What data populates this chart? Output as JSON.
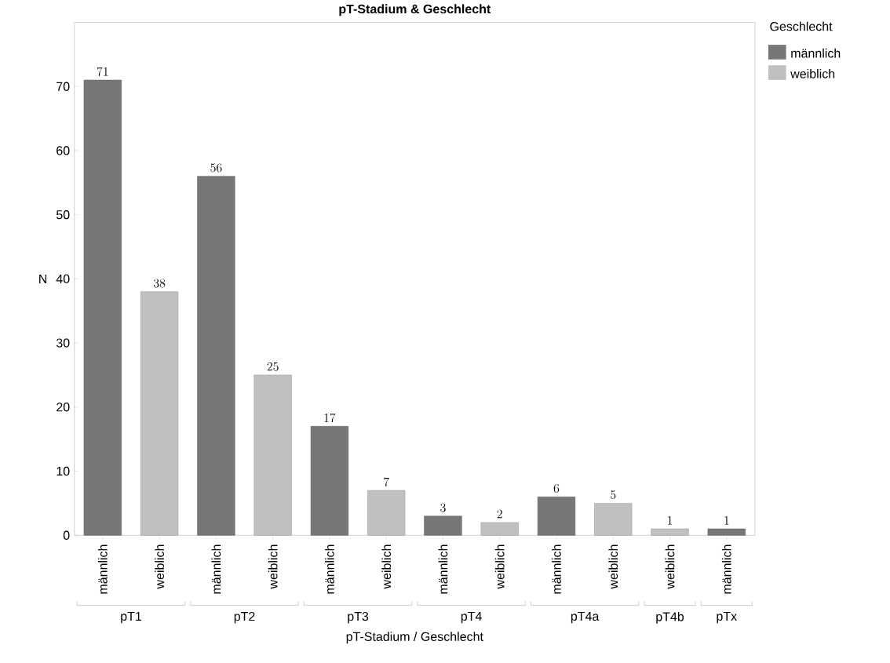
{
  "chart_data": {
    "type": "bar",
    "title": "pT-Stadium & Geschlecht",
    "xlabel": "pT-Stadium / Geschlecht",
    "ylabel": "N",
    "legend_title": "Geschlecht",
    "categories": [
      "pT1",
      "pT2",
      "pT3",
      "pT4",
      "pT4a",
      "pT4b",
      "pTx"
    ],
    "series": [
      {
        "name": "männlich",
        "color": "#777777",
        "values": [
          71,
          56,
          17,
          3,
          6,
          null,
          1
        ]
      },
      {
        "name": "weiblich",
        "color": "#c0c0c0",
        "values": [
          38,
          25,
          7,
          2,
          5,
          1,
          null
        ]
      }
    ],
    "ylim": [
      0,
      80
    ],
    "yticks": [
      0,
      10,
      20,
      30,
      40,
      50,
      60,
      70
    ],
    "data_labels": true,
    "legend": "right",
    "grid": false
  }
}
